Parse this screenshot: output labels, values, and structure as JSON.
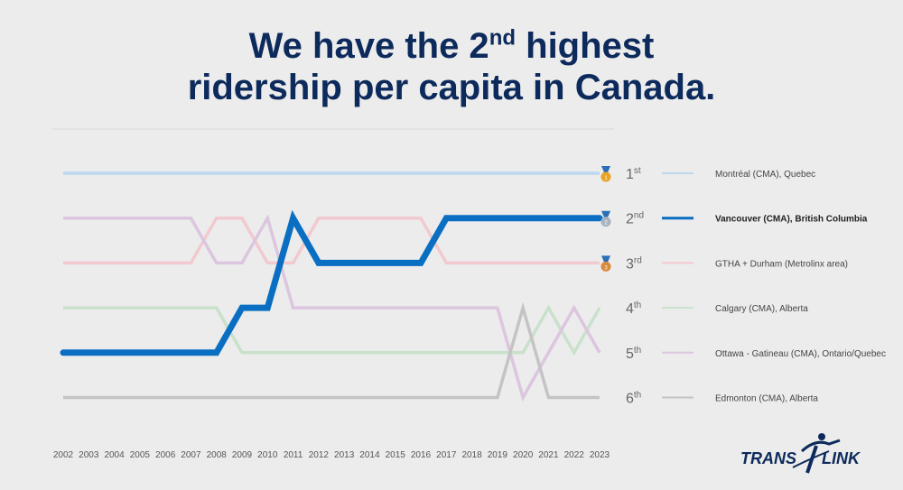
{
  "title": {
    "line1_pre": "We have the 2",
    "line1_sup": "nd",
    "line1_post": " highest",
    "line2": "ridership per capita in Canada."
  },
  "logo": {
    "left": "TRANS",
    "slash": "/",
    "right": "LINK"
  },
  "colors": {
    "background": "#ececec",
    "title": "#0d2a5c",
    "vancouver": "#0a6fc2",
    "montreal": "#bcd8ef",
    "gtha": "#f2c9cf",
    "calgary": "#c9e1cb",
    "ottawa": "#dcc6df",
    "edmonton": "#c4c4c4",
    "gold": "#e8a322",
    "silver": "#a8b3bf",
    "bronze": "#d88a3a"
  },
  "medals": [
    "gold-medal-icon",
    "silver-medal-icon",
    "bronze-medal-icon"
  ],
  "chart_data": {
    "type": "line",
    "x": [
      2002,
      2003,
      2004,
      2005,
      2006,
      2007,
      2008,
      2009,
      2010,
      2011,
      2012,
      2013,
      2014,
      2015,
      2016,
      2017,
      2018,
      2019,
      2020,
      2021,
      2022,
      2023
    ],
    "y_reversed": true,
    "ylim": [
      1,
      6
    ],
    "rank_labels": [
      {
        "num": "1",
        "suf": "st"
      },
      {
        "num": "2",
        "suf": "nd"
      },
      {
        "num": "3",
        "suf": "rd"
      },
      {
        "num": "4",
        "suf": "th"
      },
      {
        "num": "5",
        "suf": "th"
      },
      {
        "num": "6",
        "suf": "th"
      }
    ],
    "series": [
      {
        "name": "Montréal (CMA), Quebec",
        "highlight": false,
        "values": [
          1,
          1,
          1,
          1,
          1,
          1,
          1,
          1,
          1,
          1,
          1,
          1,
          1,
          1,
          1,
          1,
          1,
          1,
          1,
          1,
          1,
          1
        ]
      },
      {
        "name": "GTHA + Durham (Metrolinx area)",
        "highlight": false,
        "values": [
          3,
          3,
          3,
          3,
          3,
          3,
          2,
          2,
          3,
          3,
          2,
          2,
          2,
          2,
          2,
          3,
          3,
          3,
          3,
          3,
          3,
          3
        ]
      },
      {
        "name": "Calgary (CMA), Alberta",
        "highlight": false,
        "values": [
          4,
          4,
          4,
          4,
          4,
          4,
          4,
          5,
          5,
          5,
          5,
          5,
          5,
          5,
          5,
          5,
          5,
          5,
          5,
          4,
          5,
          4
        ]
      },
      {
        "name": "Ottawa - Gatineau (CMA), Ontario/Quebec",
        "highlight": false,
        "values": [
          2,
          2,
          2,
          2,
          2,
          2,
          3,
          3,
          2,
          4,
          4,
          4,
          4,
          4,
          4,
          4,
          4,
          4,
          6,
          5,
          4,
          5
        ]
      },
      {
        "name": "Edmonton (CMA), Alberta",
        "highlight": false,
        "values": [
          6,
          6,
          6,
          6,
          6,
          6,
          6,
          6,
          6,
          6,
          6,
          6,
          6,
          6,
          6,
          6,
          6,
          6,
          4,
          6,
          6,
          6
        ]
      },
      {
        "name": "Vancouver (CMA), British Columbia",
        "highlight": true,
        "values": [
          5,
          5,
          5,
          5,
          5,
          5,
          5,
          4,
          4,
          2,
          3,
          3,
          3,
          3,
          3,
          2,
          2,
          2,
          2,
          2,
          2,
          2
        ]
      }
    ],
    "legend": {
      "placement": "right",
      "entries": [
        "Montréal (CMA), Quebec",
        "Vancouver (CMA), British Columbia",
        "GTHA + Durham (Metrolinx area)",
        "Calgary (CMA), Alberta",
        "Ottawa - Gatineau (CMA), Ontario/Quebec",
        "Edmonton (CMA), Alberta"
      ]
    }
  }
}
